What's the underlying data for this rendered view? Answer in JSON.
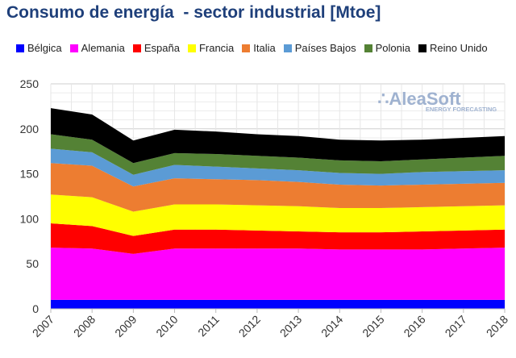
{
  "chart_data": {
    "type": "area",
    "stacked": true,
    "title": "Consumo de energía  - sector industrial [Mtoe]",
    "xlabel": "",
    "ylabel": "",
    "categories": [
      "2007",
      "2008",
      "2009",
      "2010",
      "2011",
      "2012",
      "2013",
      "2014",
      "2015",
      "2016",
      "2017",
      "2018"
    ],
    "ylim": [
      0,
      250
    ],
    "yticks": [
      0,
      50,
      100,
      150,
      200,
      250
    ],
    "grid": true,
    "legend": "top",
    "watermark": {
      "name": "AleaSoft",
      "tagline": "ENERGY FORECASTING"
    },
    "series": [
      {
        "name": "Bélgica",
        "color": "#0000ff",
        "values": [
          10,
          10,
          10,
          10,
          10,
          10,
          10,
          10,
          10,
          10,
          10,
          10
        ]
      },
      {
        "name": "Alemania",
        "color": "#ff00ff",
        "values": [
          58,
          57,
          51,
          57,
          57,
          57,
          57,
          56,
          56,
          56,
          57,
          58
        ]
      },
      {
        "name": "España",
        "color": "#ff0000",
        "values": [
          27,
          25,
          20,
          21,
          21,
          20,
          19,
          19,
          19,
          20,
          20,
          20
        ]
      },
      {
        "name": "Francia",
        "color": "#ffff00",
        "values": [
          32,
          32,
          27,
          28,
          28,
          28,
          28,
          27,
          27,
          27,
          27,
          27
        ]
      },
      {
        "name": "Italia",
        "color": "#ed7d31",
        "values": [
          35,
          35,
          28,
          29,
          28,
          28,
          27,
          26,
          25,
          25,
          25,
          25
        ]
      },
      {
        "name": "Países Bajos",
        "color": "#5b9bd5",
        "values": [
          16,
          15,
          13,
          15,
          14,
          13,
          13,
          13,
          13,
          14,
          14,
          14
        ]
      },
      {
        "name": "Polonia",
        "color": "#548235",
        "values": [
          16,
          14,
          13,
          13,
          14,
          14,
          14,
          14,
          14,
          14,
          15,
          16
        ]
      },
      {
        "name": "Reino Unido",
        "color": "#000000",
        "values": [
          29,
          28,
          25,
          26,
          25,
          24,
          24,
          23,
          23,
          22,
          22,
          22
        ]
      }
    ]
  }
}
